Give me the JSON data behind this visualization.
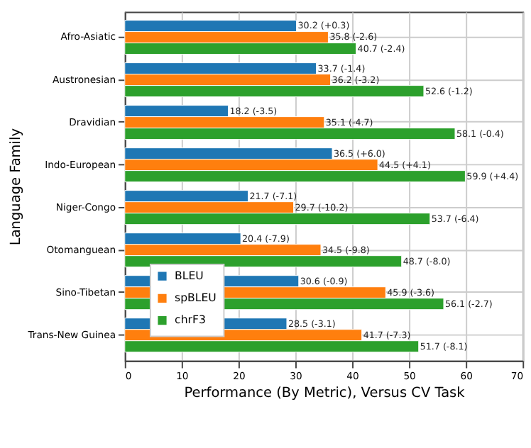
{
  "chart_data": {
    "type": "bar",
    "orientation": "horizontal",
    "xlabel": "Performance (By Metric), Versus CV Task",
    "ylabel": "Language Family",
    "categories": [
      "Afro-Asiatic",
      "Austronesian",
      "Dravidian",
      "Indo-European",
      "Niger-Congo",
      "Otomanguean",
      "Sino-Tibetan",
      "Trans-New Guinea"
    ],
    "series": [
      {
        "name": "BLEU",
        "color": "#1f77b4",
        "values": [
          30.2,
          33.7,
          18.2,
          36.5,
          21.7,
          20.4,
          30.6,
          28.5
        ],
        "value_labels": [
          "30.2 (+0.3)",
          "33.7 (-1.4)",
          "18.2 (-3.5)",
          "36.5 (+6.0)",
          "21.7 (-7.1)",
          "20.4 (-7.9)",
          "30.6 (-0.9)",
          "28.5 (-3.1)"
        ]
      },
      {
        "name": "spBLEU",
        "color": "#ff7f0e",
        "values": [
          35.8,
          36.2,
          35.1,
          44.5,
          29.7,
          34.5,
          45.9,
          41.7
        ],
        "value_labels": [
          "35.8 (-2.6)",
          "36.2 (-3.2)",
          "35.1 (-4.7)",
          "44.5 (+4.1)",
          "29.7 (-10.2)",
          "34.5 (-9.8)",
          "45.9 (-3.6)",
          "41.7 (-7.3)"
        ]
      },
      {
        "name": "chrF3",
        "color": "#2ca02c",
        "values": [
          40.7,
          52.6,
          58.1,
          59.9,
          53.7,
          48.7,
          56.1,
          51.7
        ],
        "value_labels": [
          "40.7 (-2.4)",
          "52.6 (-1.2)",
          "58.1 (-0.4)",
          "59.9 (+4.4)",
          "53.7 (-6.4)",
          "48.7 (-8.0)",
          "56.1 (-2.7)",
          "51.7 (-8.1)"
        ]
      }
    ],
    "xlim": [
      0,
      70
    ],
    "xticks": [
      0,
      10,
      20,
      30,
      40,
      50,
      60,
      70
    ],
    "grid": true,
    "legend": "bottom left"
  }
}
